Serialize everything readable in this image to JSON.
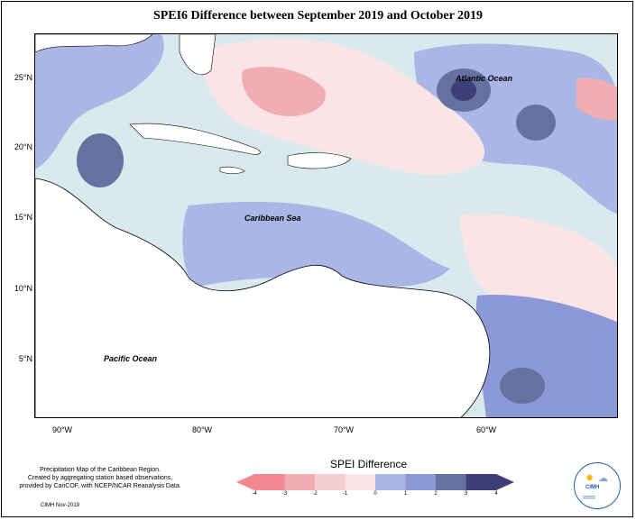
{
  "title": "SPEI6 Difference between September 2019 and October 2019",
  "map": {
    "latitudes": [
      "25°N",
      "20°N",
      "15°N",
      "10°N",
      "5°N"
    ],
    "longitudes": [
      "90°W",
      "80°W",
      "70°W",
      "60°W"
    ],
    "labels": {
      "atlantic": "Atlantic Ocean",
      "caribbean": "Caribbean Sea",
      "pacific": "Pacific Ocean"
    }
  },
  "legend": {
    "title": "SPEI Difference",
    "ticks": [
      "-4",
      "-3",
      "-2",
      "-1",
      "0",
      "1",
      "2",
      "3",
      "4"
    ],
    "colors": [
      "#f2888f",
      "#f0aeb3",
      "#f3cdd0",
      "#f9e4e6",
      "#d9eaee",
      "#a9b6e6",
      "#8b99d8",
      "#64729f",
      "#3e3f78"
    ]
  },
  "caption": {
    "line1": "Precipitation Map of the Caribbean Region.",
    "line2": "Created by aggregating station based observations,",
    "line3": "provided by CariCOF, with NCEP/NCAR Reanalysis Data."
  },
  "credit": "CIMH Nov-2019",
  "logo": {
    "text": "CIMH"
  }
}
